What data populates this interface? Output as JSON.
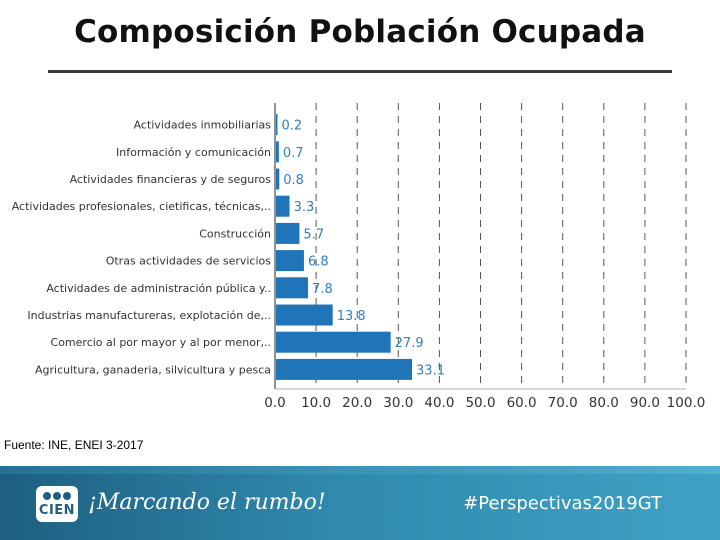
{
  "title": "Composición Población Ocupada",
  "source": "Fuente: INE, ENEI 3-2017",
  "footer": {
    "logo_text": "CIEN",
    "slogan": "¡Marcando el rumbo!",
    "hashtag": "#Perspectivas2019GT"
  },
  "chart_data": {
    "type": "bar",
    "orientation": "horizontal",
    "title": "Composición Población Ocupada",
    "xlabel": "",
    "ylabel": "",
    "xlim": [
      0,
      100
    ],
    "grid": "vertical-dashed",
    "bar_color": "#1f75b8",
    "value_label_color": "#2f7fbf",
    "ticks": [
      "0.0",
      "10.0",
      "20.0",
      "30.0",
      "40.0",
      "50.0",
      "60.0",
      "70.0",
      "80.0",
      "90.0",
      "100.0"
    ],
    "categories": [
      "Actividades inmobiliarias",
      "Información y comunicación",
      "Actividades financieras y de seguros",
      "Actividades profesionales, cietificas, técnicas,..",
      "Construcción",
      "Otras actividades de servicios",
      "Actividades de administración pública y..",
      "Industrias manufactureras, explotación de,..",
      "Comercio al por mayor y al por menor,..",
      "Agricultura, ganaderia, silvicultura y pesca"
    ],
    "values": [
      0.2,
      0.7,
      0.8,
      3.3,
      5.7,
      6.8,
      7.8,
      13.8,
      27.9,
      33.1
    ],
    "value_labels": [
      "0.2",
      "0.7",
      "0.8",
      "3.3",
      "5.7",
      "6.8",
      "7.8",
      "13.8",
      "27.9",
      "33.1"
    ]
  }
}
